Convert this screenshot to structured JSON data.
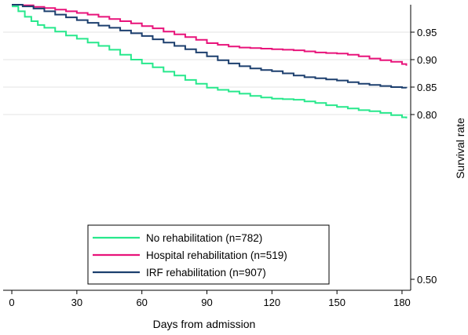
{
  "chart_data": {
    "type": "line",
    "step": true,
    "xlabel": "Days from admission",
    "ylabel": "Survival rate",
    "xlim": [
      -4,
      184
    ],
    "ylim": [
      0.48,
      1.0
    ],
    "xticks": [
      0,
      30,
      60,
      90,
      120,
      150,
      180
    ],
    "xtick_labels": [
      "0",
      "30",
      "60",
      "90",
      "120",
      "150",
      "180"
    ],
    "yticks": [
      0.95,
      0.9,
      0.85,
      0.8,
      0.5
    ],
    "ytick_labels": [
      "0.95",
      "0.90",
      "0.85",
      "0.80",
      "0.50"
    ],
    "y_axis_position": "right",
    "grid": "horizontal",
    "legend_position": "bottom-center",
    "series": [
      {
        "name": "No rehabilitation (n=782)",
        "color": "#27e88c",
        "x": [
          0,
          3,
          6,
          9,
          12,
          15,
          20,
          25,
          30,
          35,
          40,
          45,
          50,
          55,
          60,
          65,
          70,
          75,
          80,
          85,
          90,
          95,
          100,
          105,
          110,
          115,
          120,
          125,
          130,
          135,
          140,
          145,
          150,
          155,
          160,
          165,
          170,
          175,
          180,
          182
        ],
        "y": [
          0.997,
          0.988,
          0.978,
          0.97,
          0.963,
          0.958,
          0.951,
          0.944,
          0.938,
          0.931,
          0.925,
          0.918,
          0.909,
          0.9,
          0.893,
          0.886,
          0.878,
          0.871,
          0.863,
          0.856,
          0.849,
          0.845,
          0.842,
          0.838,
          0.834,
          0.831,
          0.829,
          0.828,
          0.827,
          0.824,
          0.821,
          0.817,
          0.814,
          0.811,
          0.808,
          0.806,
          0.803,
          0.799,
          0.795,
          0.793
        ]
      },
      {
        "name": "Hospital rehabilitation (n=519)",
        "color": "#e8137a",
        "x": [
          0,
          5,
          10,
          15,
          20,
          25,
          30,
          35,
          40,
          45,
          50,
          55,
          60,
          65,
          70,
          75,
          80,
          85,
          90,
          95,
          100,
          105,
          110,
          115,
          120,
          125,
          130,
          135,
          140,
          145,
          150,
          155,
          160,
          165,
          170,
          175,
          180,
          182
        ],
        "y": [
          1.0,
          0.999,
          0.996,
          0.994,
          0.991,
          0.988,
          0.985,
          0.982,
          0.978,
          0.974,
          0.97,
          0.966,
          0.961,
          0.957,
          0.951,
          0.946,
          0.941,
          0.936,
          0.93,
          0.927,
          0.924,
          0.922,
          0.921,
          0.92,
          0.919,
          0.918,
          0.917,
          0.915,
          0.913,
          0.912,
          0.911,
          0.909,
          0.906,
          0.902,
          0.899,
          0.896,
          0.892,
          0.889
        ]
      },
      {
        "name": "IRF rehabilitation (n=907)",
        "color": "#1c3f6e",
        "x": [
          0,
          5,
          10,
          15,
          20,
          25,
          30,
          35,
          40,
          45,
          50,
          55,
          60,
          65,
          70,
          75,
          80,
          85,
          90,
          95,
          100,
          105,
          110,
          115,
          120,
          125,
          130,
          135,
          140,
          145,
          150,
          155,
          160,
          165,
          170,
          175,
          180,
          182
        ],
        "y": [
          1.0,
          0.997,
          0.993,
          0.988,
          0.982,
          0.977,
          0.972,
          0.967,
          0.962,
          0.958,
          0.953,
          0.948,
          0.943,
          0.937,
          0.931,
          0.925,
          0.919,
          0.913,
          0.906,
          0.899,
          0.893,
          0.888,
          0.884,
          0.881,
          0.879,
          0.875,
          0.871,
          0.868,
          0.866,
          0.864,
          0.862,
          0.859,
          0.856,
          0.854,
          0.852,
          0.85,
          0.849,
          0.848
        ]
      }
    ]
  }
}
